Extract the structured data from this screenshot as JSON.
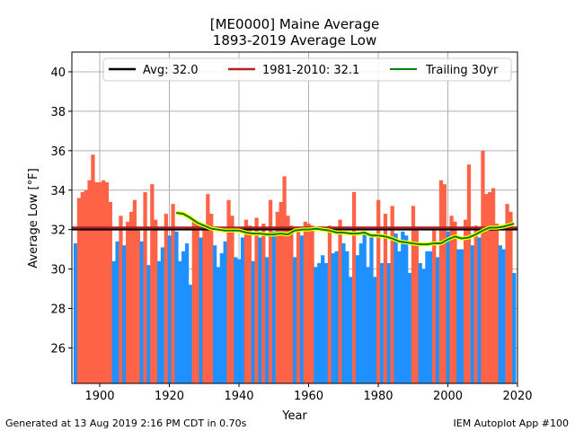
{
  "chart_data": {
    "type": "bar",
    "title_line1": "[ME0000] Maine Average",
    "title_line2": "1893-2019 Average Low",
    "xlabel": "Year",
    "ylabel": "Average Low [°F]",
    "xlim": [
      1892,
      2020
    ],
    "ylim": [
      24.2,
      41
    ],
    "x_ticks": [
      1900,
      1920,
      1940,
      1960,
      1980,
      2000,
      2020
    ],
    "y_ticks": [
      26,
      28,
      30,
      32,
      34,
      36,
      38,
      40
    ],
    "grid": true,
    "legend_position": "top",
    "colors": {
      "above": "#ff6347",
      "below": "#1e90ff",
      "average_line": "#000000",
      "climatology_line": "#b22222",
      "trailing_line": "#008000",
      "trailing_outline": "#ffff00"
    },
    "average": {
      "label": "Avg: 32.0",
      "value": 32.0
    },
    "climatology": {
      "label": "1981-2010: 32.1",
      "value": 32.1
    },
    "trailing": {
      "label": "Trailing 30yr",
      "years": [
        1922,
        1924,
        1926,
        1928,
        1930,
        1932,
        1934,
        1936,
        1938,
        1940,
        1942,
        1944,
        1946,
        1948,
        1950,
        1952,
        1954,
        1956,
        1958,
        1960,
        1962,
        1964,
        1966,
        1968,
        1970,
        1972,
        1974,
        1976,
        1978,
        1980,
        1982,
        1984,
        1986,
        1988,
        1990,
        1992,
        1994,
        1996,
        1998,
        2000,
        2002,
        2004,
        2006,
        2008,
        2010,
        2012,
        2014,
        2016,
        2018,
        2019
      ],
      "values": [
        32.85,
        32.8,
        32.6,
        32.35,
        32.2,
        32.05,
        32.0,
        31.95,
        31.95,
        31.95,
        31.85,
        31.8,
        31.8,
        31.75,
        31.75,
        31.8,
        31.75,
        31.95,
        32.0,
        32.0,
        32.05,
        32.0,
        31.95,
        31.85,
        31.85,
        31.8,
        31.8,
        31.85,
        31.7,
        31.7,
        31.65,
        31.55,
        31.4,
        31.35,
        31.3,
        31.25,
        31.25,
        31.3,
        31.3,
        31.5,
        31.65,
        31.55,
        31.6,
        31.75,
        31.95,
        32.1,
        32.1,
        32.15,
        32.25,
        32.3
      ]
    },
    "x": [
      1893,
      1894,
      1895,
      1896,
      1897,
      1898,
      1899,
      1900,
      1901,
      1902,
      1903,
      1904,
      1905,
      1906,
      1907,
      1908,
      1909,
      1910,
      1911,
      1912,
      1913,
      1914,
      1915,
      1916,
      1917,
      1918,
      1919,
      1920,
      1921,
      1922,
      1923,
      1924,
      1925,
      1926,
      1927,
      1928,
      1929,
      1930,
      1931,
      1932,
      1933,
      1934,
      1935,
      1936,
      1937,
      1938,
      1939,
      1940,
      1941,
      1942,
      1943,
      1944,
      1945,
      1946,
      1947,
      1948,
      1949,
      1950,
      1951,
      1952,
      1953,
      1954,
      1955,
      1956,
      1957,
      1958,
      1959,
      1960,
      1961,
      1962,
      1963,
      1964,
      1965,
      1966,
      1967,
      1968,
      1969,
      1970,
      1971,
      1972,
      1973,
      1974,
      1975,
      1976,
      1977,
      1978,
      1979,
      1980,
      1981,
      1982,
      1983,
      1984,
      1985,
      1986,
      1987,
      1988,
      1989,
      1990,
      1991,
      1992,
      1993,
      1994,
      1995,
      1996,
      1997,
      1998,
      1999,
      2000,
      2001,
      2002,
      2003,
      2004,
      2005,
      2006,
      2007,
      2008,
      2009,
      2010,
      2011,
      2012,
      2013,
      2014,
      2015,
      2016,
      2017,
      2018,
      2019
    ],
    "values": [
      31.3,
      33.6,
      33.9,
      34.0,
      34.5,
      35.8,
      34.4,
      34.4,
      34.5,
      34.4,
      33.4,
      30.4,
      31.4,
      32.7,
      31.2,
      32.4,
      32.9,
      33.5,
      32.0,
      31.4,
      33.9,
      30.2,
      34.3,
      32.5,
      30.4,
      31.1,
      32.8,
      31.7,
      33.3,
      31.9,
      30.4,
      30.9,
      31.3,
      29.2,
      32.4,
      32.4,
      31.6,
      32.1,
      33.8,
      32.8,
      31.2,
      30.1,
      30.8,
      31.4,
      33.5,
      32.7,
      30.6,
      30.5,
      31.6,
      32.5,
      32.2,
      30.4,
      32.6,
      31.6,
      32.3,
      30.6,
      33.5,
      31.9,
      32.9,
      33.4,
      34.7,
      32.7,
      32.2,
      30.6,
      32.1,
      31.7,
      32.4,
      32.3,
      32.2,
      30.1,
      30.3,
      30.7,
      30.3,
      32.2,
      30.8,
      30.9,
      32.5,
      31.3,
      30.9,
      29.6,
      33.9,
      30.7,
      31.3,
      31.8,
      30.1,
      31.6,
      29.6,
      33.5,
      30.3,
      32.8,
      30.3,
      33.2,
      31.8,
      30.9,
      31.9,
      31.7,
      29.8,
      33.2,
      32.0,
      30.3,
      30.0,
      30.9,
      30.9,
      32.1,
      30.6,
      34.5,
      34.3,
      31.9,
      32.7,
      32.4,
      31.0,
      31.0,
      32.5,
      35.3,
      31.2,
      32.2,
      31.6,
      36.0,
      33.8,
      33.9,
      34.1,
      32.3,
      31.2,
      31.0,
      33.3,
      32.9,
      29.8
    ]
  },
  "footer": {
    "left": "Generated at 13 Aug 2019 2:16 PM CDT in 0.70s",
    "right": "IEM Autoplot App #100"
  }
}
